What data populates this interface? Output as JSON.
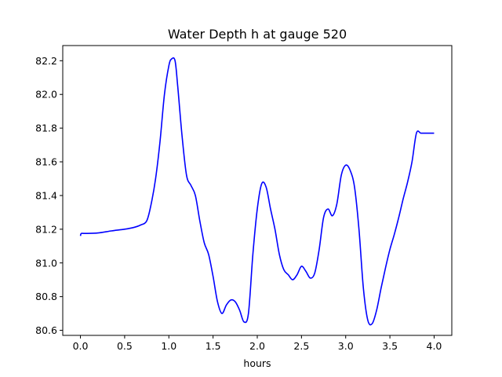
{
  "chart_data": {
    "type": "line",
    "title": "Water Depth h at gauge 520",
    "xlabel": "hours",
    "ylabel": "",
    "xlim": [
      -0.2,
      4.2
    ],
    "ylim": [
      80.57,
      82.29
    ],
    "xticks": [
      0.0,
      0.5,
      1.0,
      1.5,
      2.0,
      2.5,
      3.0,
      3.5,
      4.0
    ],
    "xtick_labels": [
      "0.0",
      "0.5",
      "1.0",
      "1.5",
      "2.0",
      "2.5",
      "3.0",
      "3.5",
      "4.0"
    ],
    "yticks": [
      80.6,
      80.8,
      81.0,
      81.2,
      81.4,
      81.6,
      81.8,
      82.0,
      82.2
    ],
    "ytick_labels": [
      "80.6",
      "80.8",
      "81.0",
      "81.2",
      "81.4",
      "81.6",
      "81.8",
      "82.0",
      "82.2"
    ],
    "grid": false,
    "line_color": "#0000ff",
    "series": [
      {
        "x": [
          0.0,
          0.01,
          0.05,
          0.2,
          0.35,
          0.5,
          0.6,
          0.68,
          0.75,
          0.8,
          0.85,
          0.9,
          0.95,
          1.0,
          1.03,
          1.07,
          1.1,
          1.15,
          1.2,
          1.25,
          1.3,
          1.35,
          1.4,
          1.45,
          1.5,
          1.55,
          1.6,
          1.65,
          1.7,
          1.75,
          1.8,
          1.85,
          1.9,
          1.95,
          2.0,
          2.05,
          2.1,
          2.15,
          2.2,
          2.25,
          2.3,
          2.35,
          2.4,
          2.45,
          2.5,
          2.55,
          2.6,
          2.65,
          2.7,
          2.75,
          2.8,
          2.85,
          2.9,
          2.95,
          3.0,
          3.05,
          3.1,
          3.15,
          3.2,
          3.25,
          3.3,
          3.35,
          3.4,
          3.45,
          3.5,
          3.55,
          3.6,
          3.65,
          3.7,
          3.75,
          3.8,
          3.85,
          3.9,
          3.95,
          4.0
        ],
        "y": [
          81.16,
          81.175,
          81.175,
          81.178,
          81.19,
          81.2,
          81.21,
          81.225,
          81.25,
          81.35,
          81.5,
          81.72,
          82.0,
          82.17,
          82.21,
          82.2,
          82.05,
          81.75,
          81.52,
          81.46,
          81.4,
          81.25,
          81.12,
          81.05,
          80.92,
          80.77,
          80.7,
          80.75,
          80.78,
          80.77,
          80.72,
          80.65,
          80.7,
          81.05,
          81.32,
          81.47,
          81.45,
          81.32,
          81.2,
          81.05,
          80.96,
          80.93,
          80.9,
          80.93,
          80.98,
          80.95,
          80.91,
          80.94,
          81.08,
          81.27,
          81.32,
          81.28,
          81.35,
          81.52,
          81.58,
          81.55,
          81.45,
          81.2,
          80.85,
          80.66,
          80.64,
          80.72,
          80.85,
          80.97,
          81.08,
          81.17,
          81.27,
          81.38,
          81.48,
          81.6,
          81.77,
          81.77,
          81.77,
          81.77,
          81.77
        ]
      }
    ]
  }
}
